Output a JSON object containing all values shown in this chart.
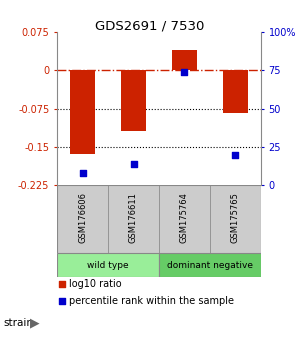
{
  "title": "GDS2691 / 7530",
  "samples": [
    "GSM176606",
    "GSM176611",
    "GSM175764",
    "GSM175765"
  ],
  "log10_ratio": [
    -0.163,
    -0.118,
    0.04,
    -0.083
  ],
  "percentile_rank": [
    8,
    14,
    74,
    20
  ],
  "ylim_left": [
    -0.225,
    0.075
  ],
  "ylim_right": [
    0,
    100
  ],
  "yticks_left": [
    0.075,
    0,
    -0.075,
    -0.15,
    -0.225
  ],
  "yticks_right": [
    100,
    75,
    50,
    25,
    0
  ],
  "bar_color": "#cc2200",
  "dot_color": "#0000cc",
  "hline_0_color": "#cc2200",
  "hline_dotted_color": "#000000",
  "groups": [
    {
      "label": "wild type",
      "color": "#99ee99"
    },
    {
      "label": "dominant negative",
      "color": "#66cc66"
    }
  ],
  "strain_label": "strain",
  "legend_bar_label": "log10 ratio",
  "legend_dot_label": "percentile rank within the sample",
  "bg_color": "#ffffff",
  "plot_bg": "#ffffff",
  "sample_box_color": "#cccccc",
  "x_positions": [
    0,
    1,
    2,
    3
  ],
  "bar_width": 0.5
}
